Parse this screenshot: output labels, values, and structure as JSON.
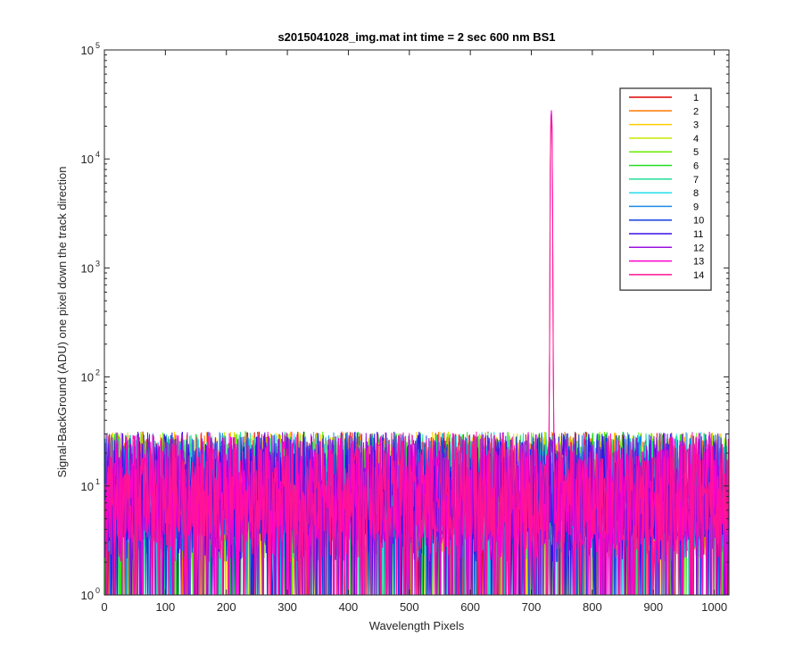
{
  "chart_data": {
    "type": "line",
    "title": "s2015041028_img.mat int time = 2 sec  600 nm BS1",
    "xlabel": "Wavelength Pixels",
    "ylabel": "Signal-BackGround (ADU) one pixel down the track direction",
    "xlim": [
      0,
      1024
    ],
    "ylim": [
      1,
      100000
    ],
    "yscale": "log",
    "grid": false,
    "legend_position": "top-right",
    "x_ticks": [
      0,
      100,
      200,
      300,
      400,
      500,
      600,
      700,
      800,
      900,
      1000
    ],
    "y_ticks": [
      {
        "value": 1,
        "base": "10",
        "exp": "0"
      },
      {
        "value": 10,
        "base": "10",
        "exp": "1"
      },
      {
        "value": 100,
        "base": "10",
        "exp": "2"
      },
      {
        "value": 1000,
        "base": "10",
        "exp": "3"
      },
      {
        "value": 10000,
        "base": "10",
        "exp": "4"
      },
      {
        "value": 100000,
        "base": "10",
        "exp": "5"
      }
    ],
    "noise": {
      "x_range": [
        1,
        1024
      ],
      "typical_min": 1,
      "typical_max": 40,
      "typical_center": 10
    },
    "peak": {
      "x": 733,
      "max_value": 28000,
      "description_values": [
        {
          "x": 729,
          "y": 30
        },
        {
          "x": 730,
          "y": 200
        },
        {
          "x": 731,
          "y": 8000
        },
        {
          "x": 732,
          "y": 24000
        },
        {
          "x": 733,
          "y": 28000
        },
        {
          "x": 734,
          "y": 20000
        },
        {
          "x": 735,
          "y": 3000
        },
        {
          "x": 736,
          "y": 150
        },
        {
          "x": 737,
          "y": 30
        }
      ]
    },
    "series": [
      {
        "name": "1",
        "color": "#e00000"
      },
      {
        "name": "2",
        "color": "#ff7a00"
      },
      {
        "name": "3",
        "color": "#ffcc00"
      },
      {
        "name": "4",
        "color": "#c8e600"
      },
      {
        "name": "5",
        "color": "#66ee00"
      },
      {
        "name": "6",
        "color": "#22dd22"
      },
      {
        "name": "7",
        "color": "#22dd99"
      },
      {
        "name": "8",
        "color": "#22ddee"
      },
      {
        "name": "9",
        "color": "#1a8ae6"
      },
      {
        "name": "10",
        "color": "#1040e0"
      },
      {
        "name": "11",
        "color": "#3a10e6"
      },
      {
        "name": "12",
        "color": "#9a10e0"
      },
      {
        "name": "13",
        "color": "#ff00cc"
      },
      {
        "name": "14",
        "color": "#ff1493"
      }
    ]
  }
}
